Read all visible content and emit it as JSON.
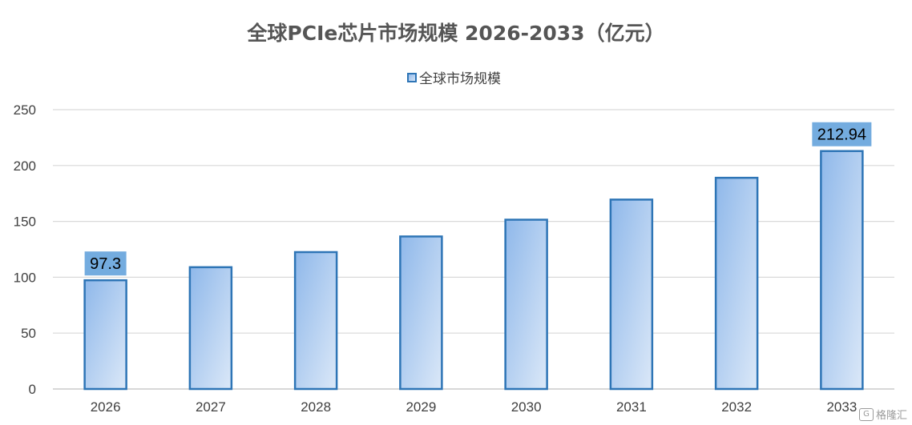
{
  "chart_data": {
    "type": "bar",
    "title": "全球PCIe芯片市场规模 2026-2033（亿元）",
    "categories": [
      "2026",
      "2027",
      "2028",
      "2029",
      "2030",
      "2031",
      "2032",
      "2033"
    ],
    "series": [
      {
        "name": "全球市场规模",
        "values": [
          97.3,
          109,
          122.5,
          136.5,
          151.5,
          169.5,
          189,
          212.94
        ]
      }
    ],
    "data_labels": {
      "0": "97.3",
      "7": "212.94"
    },
    "ylim": [
      0,
      250
    ],
    "yticks": [
      0,
      50,
      100,
      150,
      200,
      250
    ],
    "xlabel": "",
    "ylabel": "",
    "grid": true,
    "legend_position": "top-center",
    "colors": {
      "bar_fill_top": "#8fb8ea",
      "bar_fill_bottom": "#dbe8f8",
      "bar_stroke": "#2e75b6",
      "data_label_bg": "#74acdf",
      "grid": "#d9d9d9"
    }
  },
  "watermark": {
    "icon": "G",
    "text": "格隆汇"
  }
}
